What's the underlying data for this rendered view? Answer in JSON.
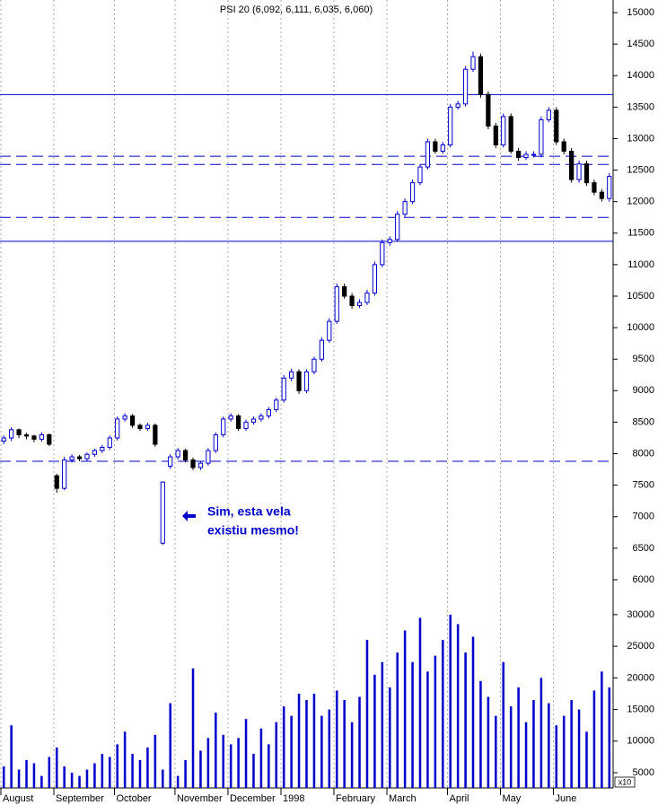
{
  "chart_data": {
    "type": "candlestick",
    "title": "PSI 20 (6,092, 6,111, 6,035, 6,060)",
    "categories": [
      "August",
      null,
      null,
      null,
      null,
      null,
      null,
      "September",
      null,
      null,
      null,
      null,
      null,
      null,
      null,
      "October",
      null,
      null,
      null,
      null,
      null,
      null,
      null,
      "November",
      null,
      null,
      null,
      null,
      null,
      null,
      "December",
      null,
      null,
      null,
      null,
      null,
      null,
      "1998",
      null,
      null,
      null,
      null,
      null,
      null,
      "February",
      null,
      null,
      null,
      null,
      null,
      null,
      "March",
      null,
      null,
      null,
      null,
      null,
      null,
      null,
      "April",
      null,
      null,
      null,
      null,
      null,
      null,
      "May",
      null,
      null,
      null,
      null,
      null,
      null,
      "June",
      null,
      null,
      null,
      null,
      null,
      null,
      null
    ],
    "open": [
      8200,
      8250,
      8380,
      8300,
      8280,
      8230,
      8300,
      7650,
      7450,
      7900,
      7950,
      7920,
      7990,
      8050,
      8100,
      8250,
      8550,
      8600,
      8450,
      8400,
      8450,
      6580,
      7800,
      7950,
      8050,
      7900,
      7780,
      7850,
      8050,
      8300,
      8550,
      8600,
      8400,
      8500,
      8550,
      8600,
      8700,
      8850,
      9200,
      9300,
      9000,
      9300,
      9500,
      9800,
      10100,
      10650,
      10500,
      10350,
      10400,
      10550,
      11000,
      11350,
      11400,
      11800,
      12000,
      12300,
      12550,
      12950,
      12800,
      12900,
      13500,
      13550,
      14100,
      14300,
      13700,
      13200,
      12900,
      13350,
      12800,
      12700,
      12750,
      12750,
      13300,
      13450,
      12950,
      12800,
      12350,
      12600,
      12300,
      12150,
      12050
    ],
    "high": [
      8290,
      8420,
      8400,
      8330,
      8300,
      8340,
      8320,
      7680,
      7950,
      7990,
      7980,
      8020,
      8080,
      8140,
      8290,
      8590,
      8640,
      8630,
      8480,
      8490,
      8480,
      7560,
      7990,
      8090,
      8080,
      7940,
      7880,
      8090,
      8340,
      8590,
      8640,
      8630,
      8540,
      8590,
      8640,
      8740,
      8890,
      9250,
      9350,
      9340,
      9340,
      9540,
      9850,
      10150,
      10700,
      10700,
      10550,
      10450,
      10600,
      11050,
      11400,
      11450,
      11850,
      12050,
      12350,
      12600,
      13000,
      13000,
      12950,
      13550,
      13600,
      14150,
      14380,
      14350,
      13750,
      13250,
      13400,
      13400,
      12850,
      12800,
      12800,
      13350,
      13500,
      13500,
      13000,
      12850,
      12650,
      12650,
      12350,
      12200,
      12450
    ],
    "low": [
      8150,
      8200,
      8250,
      8230,
      8180,
      8190,
      8120,
      7380,
      7420,
      7860,
      7880,
      7880,
      7950,
      8010,
      8060,
      8210,
      8510,
      8410,
      8360,
      8360,
      8110,
      6550,
      7760,
      7910,
      7860,
      7740,
      7740,
      7810,
      8010,
      8260,
      8510,
      8360,
      8360,
      8460,
      8510,
      8560,
      8660,
      8810,
      9150,
      8950,
      8960,
      9260,
      9460,
      9760,
      10060,
      10460,
      10300,
      10310,
      10360,
      10510,
      10960,
      11300,
      11360,
      11760,
      11960,
      12260,
      12510,
      12760,
      12760,
      12860,
      13460,
      13510,
      14060,
      13650,
      13150,
      12850,
      12860,
      12760,
      12650,
      12660,
      12700,
      12700,
      13260,
      12900,
      12750,
      12300,
      12300,
      12250,
      12100,
      12000,
      12000
    ],
    "close": [
      8250,
      8380,
      8300,
      8280,
      8230,
      8300,
      8150,
      7450,
      7900,
      7950,
      7920,
      7990,
      8050,
      8100,
      8250,
      8550,
      8600,
      8450,
      8400,
      8450,
      8150,
      7550,
      7950,
      8050,
      7900,
      7780,
      7850,
      8050,
      8300,
      8550,
      8600,
      8400,
      8500,
      8550,
      8600,
      8700,
      8850,
      9200,
      9300,
      9000,
      9300,
      9500,
      9800,
      10100,
      10650,
      10500,
      10350,
      10400,
      10550,
      11000,
      11350,
      11400,
      11800,
      12000,
      12300,
      12550,
      12950,
      12800,
      12900,
      13500,
      13550,
      14100,
      14300,
      13700,
      13200,
      12900,
      13350,
      12800,
      12700,
      12750,
      12750,
      13300,
      13450,
      12950,
      12800,
      12350,
      12600,
      12300,
      12150,
      12050,
      12400
    ],
    "volume": [
      6000,
      12500,
      5500,
      7000,
      6500,
      4500,
      7500,
      9000,
      6000,
      5000,
      4500,
      5500,
      6500,
      8000,
      7500,
      9500,
      11500,
      8000,
      7000,
      9000,
      11000,
      5500,
      16000,
      4500,
      7000,
      21500,
      8500,
      10500,
      14500,
      11000,
      9500,
      10500,
      13500,
      8000,
      12000,
      9500,
      13000,
      15500,
      14000,
      17500,
      16500,
      17500,
      14000,
      15000,
      18000,
      16500,
      13000,
      17000,
      26000,
      20500,
      22500,
      18500,
      24000,
      27500,
      22500,
      29500,
      21000,
      23500,
      26000,
      30000,
      28500,
      24000,
      26500,
      19500,
      17000,
      14000,
      22500,
      15500,
      18500,
      13000,
      16500,
      20000,
      16000,
      12500,
      14000,
      16500,
      15000,
      11500,
      18000,
      21000,
      18500
    ],
    "ylim": [
      5800,
      15200
    ],
    "yticks": [
      6000,
      6500,
      7000,
      7500,
      8000,
      8500,
      9000,
      9500,
      10000,
      10500,
      11000,
      11500,
      12000,
      12500,
      13000,
      13500,
      14000,
      14500,
      15000
    ],
    "volume_ylim": [
      2600,
      31400
    ],
    "volume_yticks": [
      5000,
      10000,
      15000,
      20000,
      25000,
      30000
    ],
    "volume_unit_label": "x10",
    "up_color": "#0000cc",
    "down_color": "#000000",
    "volume_color": "#0000cc",
    "hlines": [
      {
        "value": 13700,
        "style": "solid"
      },
      {
        "value": 12720,
        "style": "dashed"
      },
      {
        "value": 12590,
        "style": "dashed"
      },
      {
        "value": 11750,
        "style": "dashed"
      },
      {
        "value": 11370,
        "style": "solid"
      },
      {
        "value": 7880,
        "style": "dashed"
      }
    ],
    "hline_color": "#0000cc",
    "annotation": [
      "Sim, esta vela",
      "existiu mesmo!"
    ],
    "annotation_color": "#0000cc"
  }
}
